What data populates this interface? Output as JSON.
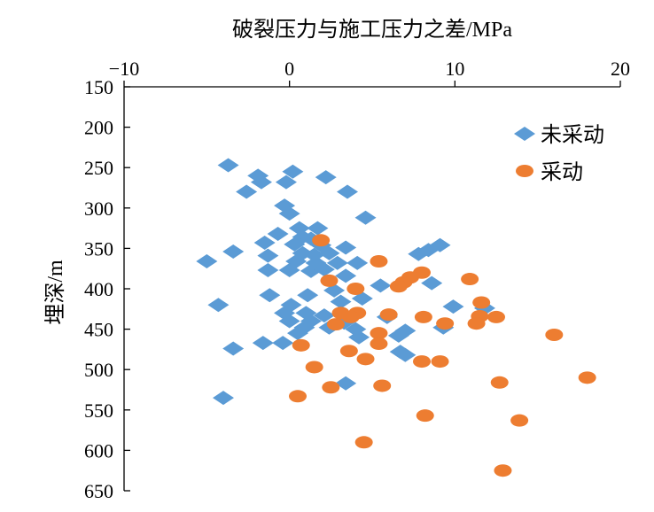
{
  "chart_data": {
    "type": "scatter",
    "title": "破裂压力与施工压力之差/MPa",
    "ylabel": "埋深/m",
    "xlim": [
      -10,
      20
    ],
    "ylim": [
      150,
      650
    ],
    "y_reversed": true,
    "x_axis_position": "top",
    "x_ticks": [
      -10,
      0,
      10,
      20
    ],
    "x_tick_labels": [
      "−10",
      "0",
      "10",
      "20"
    ],
    "y_ticks": [
      150,
      200,
      250,
      300,
      350,
      400,
      450,
      500,
      550,
      600,
      650
    ],
    "grid": false,
    "legend_position": "top-right",
    "series": [
      {
        "name": "未采动",
        "marker": "diamond",
        "color": "#5B9BD5",
        "points": [
          [
            -3.7,
            247
          ],
          [
            0.2,
            255
          ],
          [
            -1.9,
            260
          ],
          [
            2.2,
            262
          ],
          [
            -1.7,
            268
          ],
          [
            -0.2,
            268
          ],
          [
            -2.6,
            280
          ],
          [
            3.5,
            280
          ],
          [
            -0.3,
            297
          ],
          [
            0.0,
            307
          ],
          [
            4.6,
            312
          ],
          [
            0.6,
            325
          ],
          [
            1.7,
            325
          ],
          [
            -0.7,
            332
          ],
          [
            0.8,
            336
          ],
          [
            1.3,
            338
          ],
          [
            -1.5,
            343
          ],
          [
            0.3,
            345
          ],
          [
            1.9,
            346
          ],
          [
            3.4,
            349
          ],
          [
            9.1,
            346
          ],
          [
            8.4,
            352
          ],
          [
            7.8,
            357
          ],
          [
            -3.4,
            354
          ],
          [
            -1.3,
            359
          ],
          [
            0.8,
            356
          ],
          [
            1.5,
            358
          ],
          [
            2.4,
            356
          ],
          [
            -5.0,
            366
          ],
          [
            0.4,
            366
          ],
          [
            1.6,
            368
          ],
          [
            2.9,
            368
          ],
          [
            4.1,
            368
          ],
          [
            -1.3,
            377
          ],
          [
            0.0,
            377
          ],
          [
            1.3,
            378
          ],
          [
            2.1,
            376
          ],
          [
            3.4,
            384
          ],
          [
            5.5,
            396
          ],
          [
            8.6,
            393
          ],
          [
            2.7,
            402
          ],
          [
            4.4,
            412
          ],
          [
            -1.2,
            408
          ],
          [
            1.1,
            408
          ],
          [
            3.1,
            416
          ],
          [
            -4.3,
            420
          ],
          [
            0.1,
            420
          ],
          [
            9.9,
            422
          ],
          [
            11.8,
            424
          ],
          [
            -0.3,
            430
          ],
          [
            1.0,
            430
          ],
          [
            2.1,
            433
          ],
          [
            0.0,
            440
          ],
          [
            3.3,
            442
          ],
          [
            5.9,
            435
          ],
          [
            1.3,
            440
          ],
          [
            0.9,
            448
          ],
          [
            2.4,
            448
          ],
          [
            4.0,
            450
          ],
          [
            9.3,
            448
          ],
          [
            0.5,
            455
          ],
          [
            7.0,
            452
          ],
          [
            4.2,
            460
          ],
          [
            6.6,
            458
          ],
          [
            -1.6,
            467
          ],
          [
            -0.4,
            467
          ],
          [
            -3.4,
            474
          ],
          [
            6.7,
            478
          ],
          [
            7.0,
            482
          ],
          [
            3.4,
            517
          ],
          [
            -4.0,
            535
          ]
        ]
      },
      {
        "name": "采动",
        "marker": "circle",
        "color": "#ED7D31",
        "points": [
          [
            1.9,
            340
          ],
          [
            5.4,
            366
          ],
          [
            8.0,
            380
          ],
          [
            7.3,
            386
          ],
          [
            10.9,
            388
          ],
          [
            2.4,
            390
          ],
          [
            6.9,
            392
          ],
          [
            6.6,
            397
          ],
          [
            4.0,
            400
          ],
          [
            11.6,
            417
          ],
          [
            3.1,
            430
          ],
          [
            4.1,
            430
          ],
          [
            3.7,
            435
          ],
          [
            8.1,
            435
          ],
          [
            6.0,
            432
          ],
          [
            11.5,
            434
          ],
          [
            12.5,
            435
          ],
          [
            2.8,
            444
          ],
          [
            9.4,
            443
          ],
          [
            11.3,
            443
          ],
          [
            5.4,
            455
          ],
          [
            16.0,
            457
          ],
          [
            0.7,
            470
          ],
          [
            5.4,
            468
          ],
          [
            3.6,
            477
          ],
          [
            4.6,
            487
          ],
          [
            8.0,
            490
          ],
          [
            9.1,
            490
          ],
          [
            1.5,
            497
          ],
          [
            18.0,
            510
          ],
          [
            12.7,
            516
          ],
          [
            5.6,
            520
          ],
          [
            2.5,
            522
          ],
          [
            0.5,
            533
          ],
          [
            8.2,
            557
          ],
          [
            13.9,
            563
          ],
          [
            4.5,
            590
          ],
          [
            12.9,
            625
          ]
        ]
      }
    ]
  }
}
